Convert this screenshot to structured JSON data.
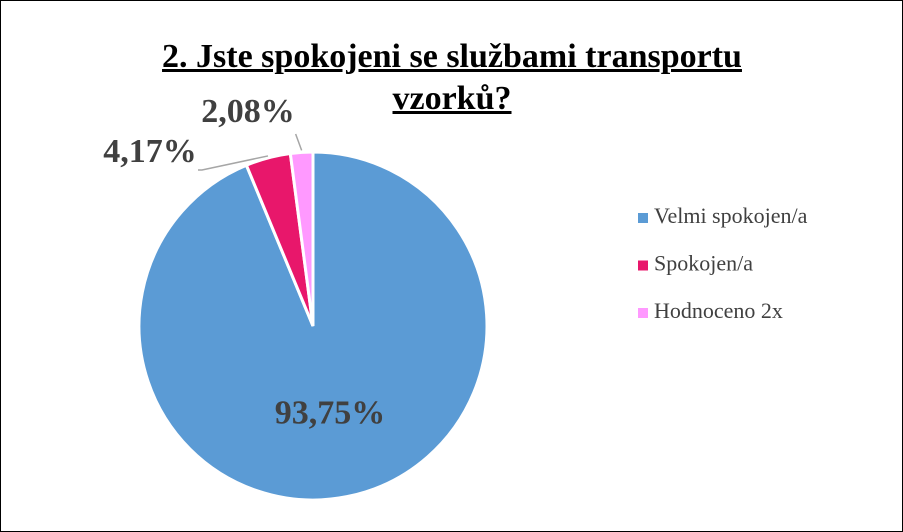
{
  "chart_data": {
    "type": "pie",
    "title": "2. Jste spokojeni se službami transportu vzorků?",
    "categories": [
      "Velmi spokojen/a",
      "Spokojen/a",
      "Hodnoceno 2x"
    ],
    "values": [
      93.75,
      4.17,
      2.08
    ],
    "value_labels": [
      "93,75%",
      "4,17%",
      "2,08%"
    ],
    "colors": [
      "#5b9bd5",
      "#e8176b",
      "#ff99ff"
    ],
    "legend": "right"
  }
}
